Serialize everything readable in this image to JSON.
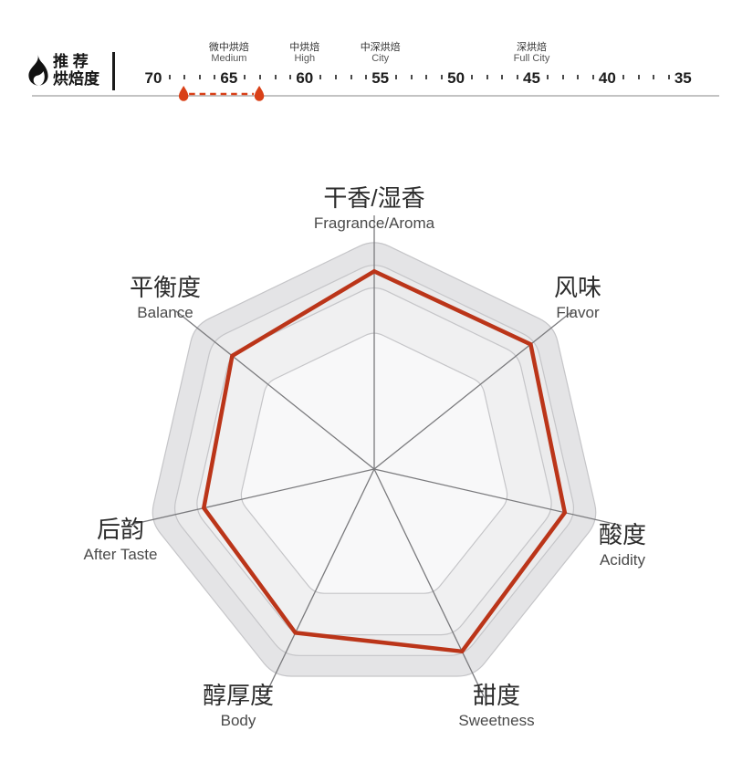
{
  "header": {
    "title_line1": "推 荐",
    "title_line2": "烘焙度",
    "flame_icon": "flame-icon",
    "scale": {
      "major_values": [
        70,
        65,
        60,
        55,
        50,
        45,
        40,
        35
      ],
      "minor_ticks_per_gap": 4,
      "roast_levels": [
        {
          "zh": "微中烘焙",
          "en": "Medium",
          "value": 65
        },
        {
          "zh": "中烘焙",
          "en": "High",
          "value": 60
        },
        {
          "zh": "中深烘焙",
          "en": "City",
          "value": 55
        },
        {
          "zh": "深烘焙",
          "en": "Full City",
          "value": 45
        }
      ],
      "recommended_range": {
        "from": 68,
        "to": 63
      },
      "marker_color": "#d94017",
      "baseline_color": "#c3c3c3"
    }
  },
  "chart_data": [
    {
      "type": "line",
      "title": "推荐烘焙度 (recommended roast range gauge)",
      "x_axis_ticks": [
        70,
        65,
        60,
        55,
        50,
        45,
        40,
        35
      ],
      "x_axis_direction": "descending left to right",
      "stage_annotations": [
        {
          "label_zh": "微中烘焙",
          "label_en": "Medium",
          "at": 65
        },
        {
          "label_zh": "中烘焙",
          "label_en": "High",
          "at": 60
        },
        {
          "label_zh": "中深烘焙",
          "label_en": "City",
          "at": 55
        },
        {
          "label_zh": "深烘焙",
          "label_en": "Full City",
          "at": 45
        }
      ],
      "highlighted_range": {
        "from": 68,
        "to": 63,
        "style": "red dashed line between two red drop markers"
      }
    },
    {
      "type": "radar",
      "axes": [
        {
          "zh": "干香/湿香",
          "en": "Fragrance/Aroma"
        },
        {
          "zh": "风味",
          "en": "Flavor"
        },
        {
          "zh": "酸度",
          "en": "Acidity"
        },
        {
          "zh": "甜度",
          "en": "Sweetness"
        },
        {
          "zh": "醇厚度",
          "en": "Body"
        },
        {
          "zh": "后韵",
          "en": "After Taste"
        },
        {
          "zh": "平衡度",
          "en": "Balance"
        }
      ],
      "values": [
        8.6,
        8.7,
        8.5,
        8.8,
        7.9,
        7.6,
        7.9
      ],
      "max": 10,
      "ring_levels": [
        10,
        9,
        8,
        6
      ],
      "ring_fills": [
        "#e4e4e6",
        "#ebebec",
        "#f0f0f1",
        "#f8f8f9"
      ],
      "ring_stroke": "#c5c5c8",
      "axis_line_color": "#7a7a7d",
      "line_color": "#bb3519",
      "legend": "none",
      "grid": "rounded concentric heptagons, vertex up"
    }
  ]
}
